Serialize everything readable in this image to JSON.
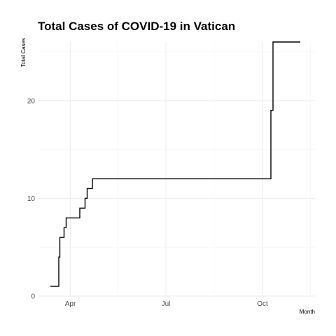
{
  "chart_data": {
    "type": "line",
    "title": "Total Cases of COVID-19 in Vatican",
    "xlabel": "Month",
    "ylabel": "Total Cases",
    "x_type": "date",
    "xlim": [
      "2020-03-01",
      "2020-11-20"
    ],
    "ylim": [
      0,
      26
    ],
    "y_ticks": [
      0,
      10,
      20
    ],
    "x_ticks": [
      {
        "date": "2020-04-01",
        "label": "Apr"
      },
      {
        "date": "2020-07-01",
        "label": "Jul"
      },
      {
        "date": "2020-10-01",
        "label": "Oct"
      }
    ],
    "grid": true,
    "legend": "none",
    "line_color": "#000000",
    "series": [
      {
        "x": [
          "2020-03-13",
          "2020-03-20",
          "2020-03-21",
          "2020-03-22",
          "2020-03-25",
          "2020-03-26",
          "2020-03-28",
          "2020-04-03",
          "2020-04-10",
          "2020-04-12",
          "2020-04-15",
          "2020-04-17",
          "2020-04-22",
          "2020-05-06",
          "2020-08-15",
          "2020-10-08",
          "2020-10-09",
          "2020-10-10",
          "2020-10-11",
          "2020-10-12",
          "2020-10-24",
          "2020-11-06"
        ],
        "y": [
          1,
          1,
          4,
          6,
          6,
          7,
          8,
          8,
          9,
          9,
          10,
          11,
          12,
          12,
          12,
          12,
          19,
          19,
          26,
          26,
          26,
          26
        ]
      }
    ]
  }
}
